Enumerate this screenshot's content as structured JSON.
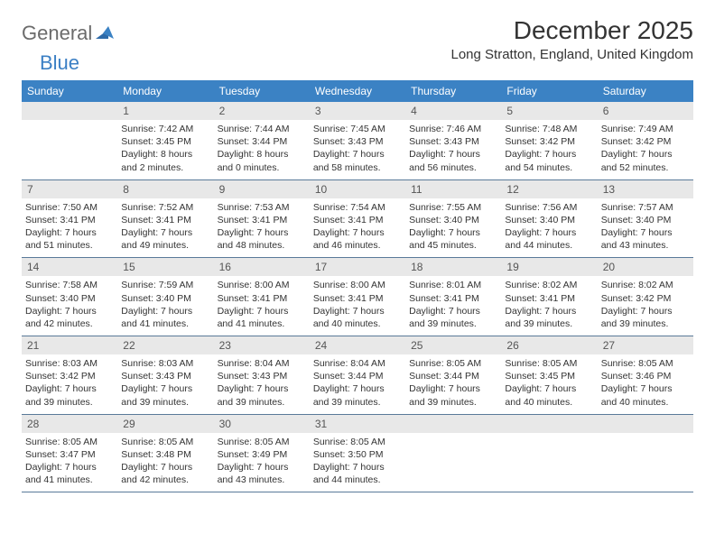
{
  "brand": {
    "part1": "General",
    "part2": "Blue"
  },
  "title": "December 2025",
  "location": "Long Stratton, England, United Kingdom",
  "style": {
    "header_bg": "#3b82c4",
    "header_text": "#ffffff",
    "daynum_bg": "#e8e8e8",
    "row_border": "#5a7a99",
    "logo_gray": "#6b6b6b",
    "logo_blue": "#3b7fc4"
  },
  "weekdays": [
    "Sunday",
    "Monday",
    "Tuesday",
    "Wednesday",
    "Thursday",
    "Friday",
    "Saturday"
  ],
  "weeks": [
    [
      null,
      {
        "n": "1",
        "sr": "7:42 AM",
        "ss": "3:45 PM",
        "dl": "8 hours and 2 minutes."
      },
      {
        "n": "2",
        "sr": "7:44 AM",
        "ss": "3:44 PM",
        "dl": "8 hours and 0 minutes."
      },
      {
        "n": "3",
        "sr": "7:45 AM",
        "ss": "3:43 PM",
        "dl": "7 hours and 58 minutes."
      },
      {
        "n": "4",
        "sr": "7:46 AM",
        "ss": "3:43 PM",
        "dl": "7 hours and 56 minutes."
      },
      {
        "n": "5",
        "sr": "7:48 AM",
        "ss": "3:42 PM",
        "dl": "7 hours and 54 minutes."
      },
      {
        "n": "6",
        "sr": "7:49 AM",
        "ss": "3:42 PM",
        "dl": "7 hours and 52 minutes."
      }
    ],
    [
      {
        "n": "7",
        "sr": "7:50 AM",
        "ss": "3:41 PM",
        "dl": "7 hours and 51 minutes."
      },
      {
        "n": "8",
        "sr": "7:52 AM",
        "ss": "3:41 PM",
        "dl": "7 hours and 49 minutes."
      },
      {
        "n": "9",
        "sr": "7:53 AM",
        "ss": "3:41 PM",
        "dl": "7 hours and 48 minutes."
      },
      {
        "n": "10",
        "sr": "7:54 AM",
        "ss": "3:41 PM",
        "dl": "7 hours and 46 minutes."
      },
      {
        "n": "11",
        "sr": "7:55 AM",
        "ss": "3:40 PM",
        "dl": "7 hours and 45 minutes."
      },
      {
        "n": "12",
        "sr": "7:56 AM",
        "ss": "3:40 PM",
        "dl": "7 hours and 44 minutes."
      },
      {
        "n": "13",
        "sr": "7:57 AM",
        "ss": "3:40 PM",
        "dl": "7 hours and 43 minutes."
      }
    ],
    [
      {
        "n": "14",
        "sr": "7:58 AM",
        "ss": "3:40 PM",
        "dl": "7 hours and 42 minutes."
      },
      {
        "n": "15",
        "sr": "7:59 AM",
        "ss": "3:40 PM",
        "dl": "7 hours and 41 minutes."
      },
      {
        "n": "16",
        "sr": "8:00 AM",
        "ss": "3:41 PM",
        "dl": "7 hours and 41 minutes."
      },
      {
        "n": "17",
        "sr": "8:00 AM",
        "ss": "3:41 PM",
        "dl": "7 hours and 40 minutes."
      },
      {
        "n": "18",
        "sr": "8:01 AM",
        "ss": "3:41 PM",
        "dl": "7 hours and 39 minutes."
      },
      {
        "n": "19",
        "sr": "8:02 AM",
        "ss": "3:41 PM",
        "dl": "7 hours and 39 minutes."
      },
      {
        "n": "20",
        "sr": "8:02 AM",
        "ss": "3:42 PM",
        "dl": "7 hours and 39 minutes."
      }
    ],
    [
      {
        "n": "21",
        "sr": "8:03 AM",
        "ss": "3:42 PM",
        "dl": "7 hours and 39 minutes."
      },
      {
        "n": "22",
        "sr": "8:03 AM",
        "ss": "3:43 PM",
        "dl": "7 hours and 39 minutes."
      },
      {
        "n": "23",
        "sr": "8:04 AM",
        "ss": "3:43 PM",
        "dl": "7 hours and 39 minutes."
      },
      {
        "n": "24",
        "sr": "8:04 AM",
        "ss": "3:44 PM",
        "dl": "7 hours and 39 minutes."
      },
      {
        "n": "25",
        "sr": "8:05 AM",
        "ss": "3:44 PM",
        "dl": "7 hours and 39 minutes."
      },
      {
        "n": "26",
        "sr": "8:05 AM",
        "ss": "3:45 PM",
        "dl": "7 hours and 40 minutes."
      },
      {
        "n": "27",
        "sr": "8:05 AM",
        "ss": "3:46 PM",
        "dl": "7 hours and 40 minutes."
      }
    ],
    [
      {
        "n": "28",
        "sr": "8:05 AM",
        "ss": "3:47 PM",
        "dl": "7 hours and 41 minutes."
      },
      {
        "n": "29",
        "sr": "8:05 AM",
        "ss": "3:48 PM",
        "dl": "7 hours and 42 minutes."
      },
      {
        "n": "30",
        "sr": "8:05 AM",
        "ss": "3:49 PM",
        "dl": "7 hours and 43 minutes."
      },
      {
        "n": "31",
        "sr": "8:05 AM",
        "ss": "3:50 PM",
        "dl": "7 hours and 44 minutes."
      },
      null,
      null,
      null
    ]
  ],
  "labels": {
    "sunrise": "Sunrise:",
    "sunset": "Sunset:",
    "daylight": "Daylight:"
  }
}
